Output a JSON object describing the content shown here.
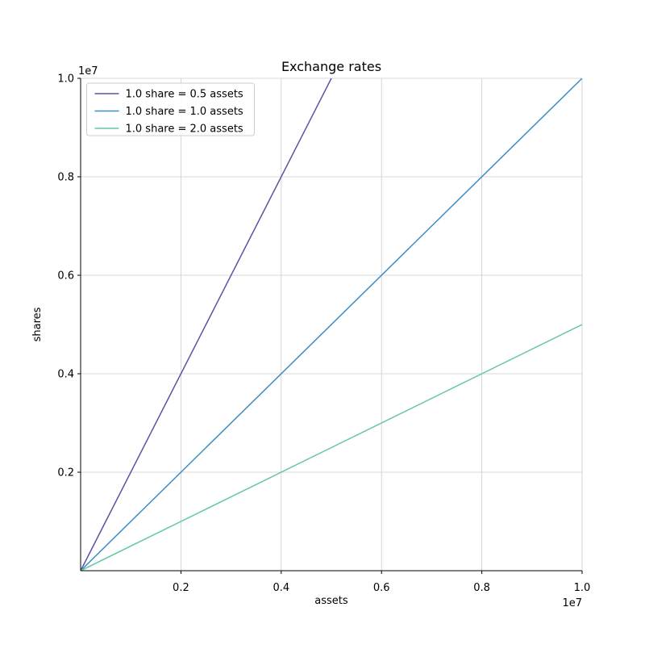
{
  "chart_data": {
    "type": "line",
    "title": "Exchange rates",
    "xlabel": "assets",
    "ylabel": "shares",
    "offset_text": "1e7",
    "xlim": [
      0,
      10000000
    ],
    "ylim": [
      0,
      10000000
    ],
    "x_ticks": [
      2000000,
      4000000,
      6000000,
      8000000,
      10000000
    ],
    "x_tick_labels": [
      "0.2",
      "0.4",
      "0.6",
      "0.8",
      "1.0"
    ],
    "y_ticks": [
      2000000,
      4000000,
      6000000,
      8000000,
      10000000
    ],
    "y_tick_labels": [
      "0.2",
      "0.4",
      "0.6",
      "0.8",
      "1.0"
    ],
    "grid": true,
    "legend_position": "upper left",
    "series": [
      {
        "name": "1.0 share = 0.5 assets",
        "color": "#5a52a5",
        "points": [
          [
            0,
            0
          ],
          [
            5000000,
            10000000
          ]
        ]
      },
      {
        "name": "1.0 share = 1.0 assets",
        "color": "#3d8cc4",
        "points": [
          [
            0,
            0
          ],
          [
            10000000,
            10000000
          ]
        ]
      },
      {
        "name": "1.0 share = 2.0 assets",
        "color": "#66c8a3",
        "points": [
          [
            0,
            0
          ],
          [
            10000000,
            5000000
          ]
        ]
      }
    ],
    "style": {
      "grid_color": "#cccccc",
      "spine_color": "#000000",
      "legend_border_color": "#cccccc",
      "legend_bg_color": "#ffffff"
    }
  }
}
